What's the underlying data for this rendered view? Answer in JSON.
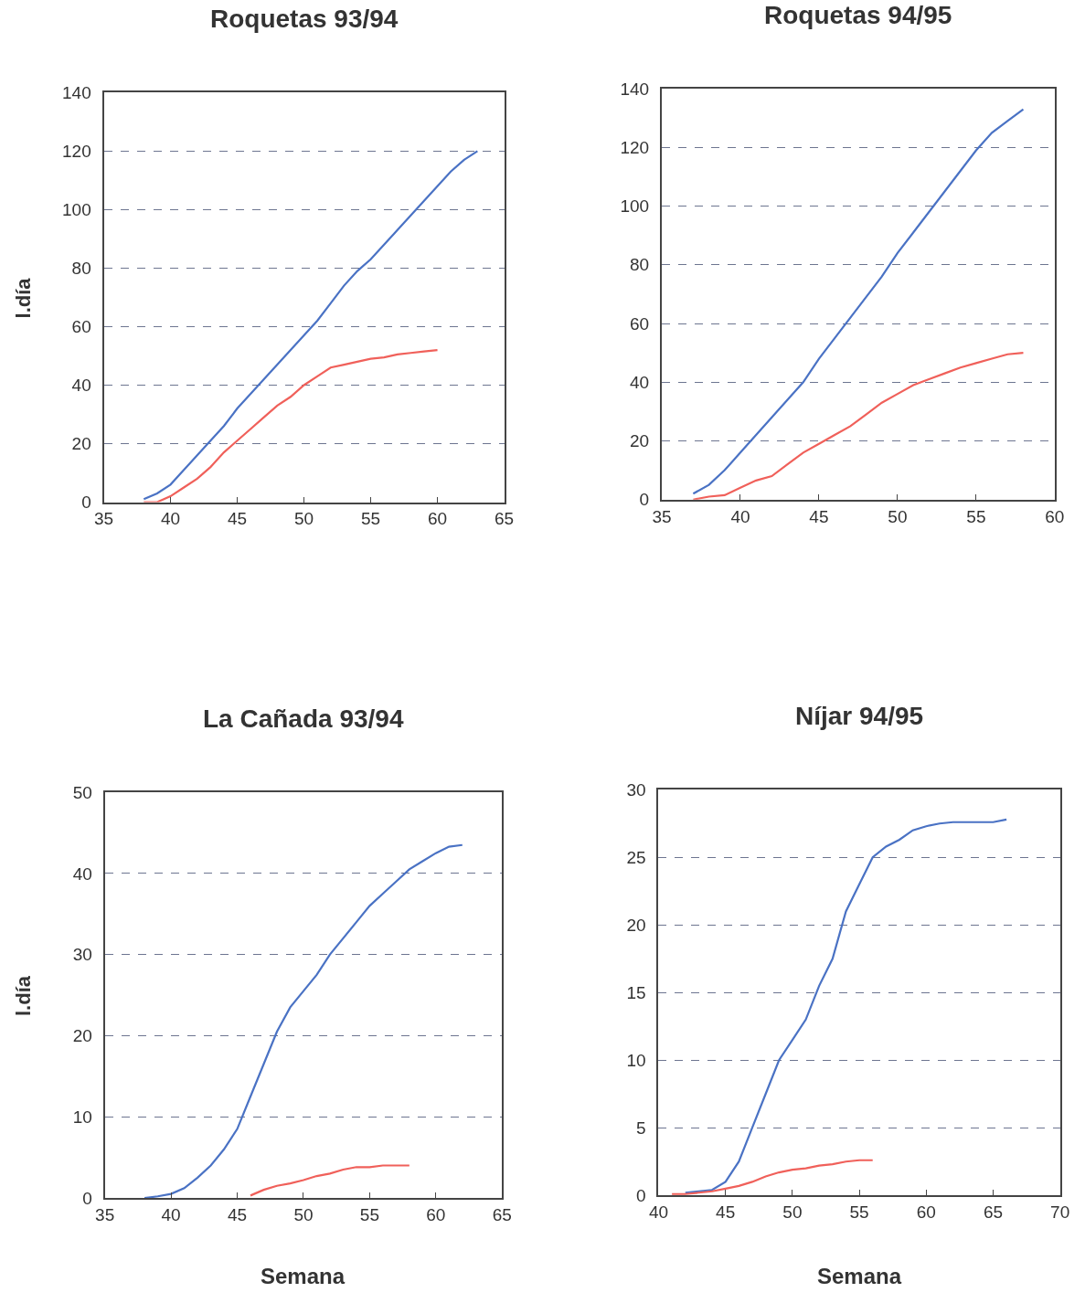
{
  "chart_data": [
    {
      "type": "line",
      "title": "Roquetas 93/94",
      "ylabel": "l.día",
      "xlim": [
        35,
        65
      ],
      "xticks": [
        35,
        40,
        45,
        50,
        55,
        60,
        65
      ],
      "ylim": [
        0,
        140
      ],
      "yticks": [
        0,
        20,
        40,
        60,
        80,
        100,
        120,
        140
      ],
      "grid": "y",
      "line_style": "solid",
      "series": [
        {
          "color": "#4a72c4",
          "x": [
            38,
            39,
            40,
            41,
            42,
            43,
            44,
            45,
            46,
            47,
            48,
            49,
            50,
            51,
            52,
            53,
            54,
            55,
            56,
            57,
            58,
            59,
            60,
            61,
            62,
            63
          ],
          "values": [
            1,
            3,
            6,
            11,
            16,
            21,
            26,
            32,
            37,
            42,
            47,
            52,
            57,
            62,
            68,
            74,
            79,
            83,
            88,
            93,
            98,
            103,
            108,
            113,
            117,
            120
          ]
        },
        {
          "color": "#f0605a",
          "x": [
            38,
            39,
            40,
            41,
            42,
            43,
            44,
            45,
            46,
            47,
            48,
            49,
            50,
            51,
            52,
            53,
            54,
            55,
            56,
            57,
            58,
            59,
            60
          ],
          "values": [
            0,
            0,
            2,
            5,
            8,
            12,
            17,
            21,
            25,
            29,
            33,
            36,
            40,
            43,
            46,
            47,
            48,
            49,
            49.5,
            50.5,
            51,
            51.5,
            52
          ]
        }
      ]
    },
    {
      "type": "line",
      "title": "Roquetas 94/95",
      "xlim": [
        35,
        60
      ],
      "xticks": [
        35,
        40,
        45,
        50,
        55,
        60
      ],
      "ylim": [
        0,
        140
      ],
      "yticks": [
        0,
        20,
        40,
        60,
        80,
        100,
        120,
        140
      ],
      "grid": "y",
      "line_style": "solid",
      "series": [
        {
          "color": "#4a72c4",
          "x": [
            37,
            38,
            39,
            40,
            41,
            42,
            43,
            44,
            45,
            46,
            47,
            48,
            49,
            50,
            51,
            52,
            53,
            54,
            55,
            56,
            57,
            58
          ],
          "values": [
            2,
            5,
            10,
            16,
            22,
            28,
            34,
            40,
            48,
            55,
            62,
            69,
            76,
            84,
            91,
            98,
            105,
            112,
            119,
            125,
            129,
            133
          ]
        },
        {
          "color": "#f0605a",
          "x": [
            37,
            38,
            39,
            40,
            41,
            42,
            43,
            44,
            45,
            46,
            47,
            48,
            49,
            50,
            51,
            52,
            53,
            54,
            55,
            56,
            57,
            58
          ],
          "values": [
            0,
            1,
            1.5,
            4,
            6.5,
            8,
            12,
            16,
            19,
            22,
            25,
            29,
            33,
            36,
            39,
            41,
            43,
            45,
            46.5,
            48,
            49.5,
            50
          ]
        }
      ]
    },
    {
      "type": "line",
      "title": "La Cañada 93/94",
      "ylabel": "l.día",
      "xlabel": "Semana",
      "xlim": [
        35,
        65
      ],
      "xticks": [
        35,
        40,
        45,
        50,
        55,
        60,
        65
      ],
      "ylim": [
        0,
        50
      ],
      "yticks": [
        0,
        10,
        20,
        30,
        40,
        50
      ],
      "grid": "y",
      "line_style": "solid",
      "series": [
        {
          "color": "#4a72c4",
          "x": [
            38,
            39,
            40,
            41,
            42,
            43,
            44,
            45,
            46,
            47,
            48,
            49,
            50,
            51,
            52,
            53,
            54,
            55,
            56,
            57,
            58,
            59,
            60,
            61,
            62
          ],
          "values": [
            0,
            0.2,
            0.5,
            1.2,
            2.5,
            4,
            6,
            8.5,
            12.5,
            16.5,
            20.5,
            23.5,
            25.5,
            27.5,
            30,
            32,
            34,
            36,
            37.5,
            39,
            40.5,
            41.5,
            42.5,
            43.3,
            43.5
          ]
        },
        {
          "color": "#f0605a",
          "x": [
            46,
            47,
            48,
            49,
            50,
            51,
            52,
            53,
            54,
            55,
            56,
            57,
            58
          ],
          "values": [
            0.3,
            1,
            1.5,
            1.8,
            2.2,
            2.7,
            3,
            3.5,
            3.8,
            3.8,
            4,
            4,
            4
          ]
        }
      ]
    },
    {
      "type": "line",
      "title": "Níjar 94/95",
      "xlabel": "Semana",
      "xlim": [
        40,
        70
      ],
      "xticks": [
        40,
        45,
        50,
        55,
        60,
        65,
        70
      ],
      "ylim": [
        0,
        30
      ],
      "yticks": [
        0,
        5,
        10,
        15,
        20,
        25,
        30
      ],
      "grid": "y",
      "line_style": "solid",
      "series": [
        {
          "color": "#4a72c4",
          "x": [
            42,
            43,
            44,
            45,
            46,
            47,
            48,
            49,
            50,
            51,
            52,
            53,
            54,
            55,
            56,
            57,
            58,
            59,
            60,
            61,
            62,
            63,
            64,
            65,
            66
          ],
          "values": [
            0.2,
            0.3,
            0.4,
            1,
            2.5,
            5,
            7.5,
            10,
            11.5,
            13,
            15.5,
            17.5,
            21,
            23,
            25,
            25.8,
            26.3,
            27,
            27.3,
            27.5,
            27.6,
            27.6,
            27.6,
            27.6,
            27.8
          ]
        },
        {
          "color": "#f0605a",
          "x": [
            41,
            42,
            43,
            44,
            45,
            46,
            47,
            48,
            49,
            50,
            51,
            52,
            53,
            54,
            55,
            56
          ],
          "values": [
            0.1,
            0.1,
            0.2,
            0.3,
            0.5,
            0.7,
            1,
            1.4,
            1.7,
            1.9,
            2,
            2.2,
            2.3,
            2.5,
            2.6,
            2.6
          ]
        }
      ]
    }
  ]
}
